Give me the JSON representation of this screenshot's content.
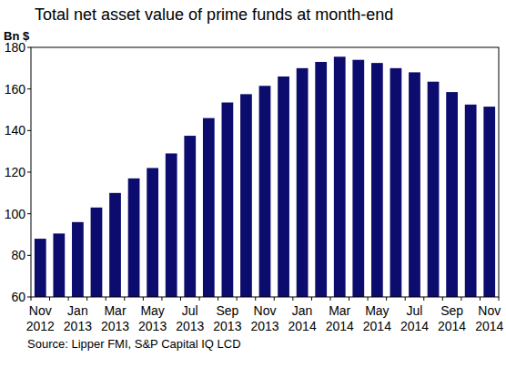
{
  "chart_data": {
    "type": "bar",
    "title": "Total net asset value of prime funds at month-end",
    "y_label": "Bn $",
    "source": "Source: Lipper FMI, S&P Capital IQ LCD",
    "categories": [
      "Nov 2012",
      null,
      "Jan 2013",
      null,
      "Mar 2013",
      null,
      "May 2013",
      null,
      "Jul 2013",
      null,
      "Sep 2013",
      null,
      "Nov 2013",
      null,
      "Jan 2014",
      null,
      "Mar 2014",
      null,
      "May 2014",
      null,
      "Jul 2014",
      null,
      "Sep 2014",
      null,
      "Nov 2014"
    ],
    "values": [
      88,
      90.5,
      96,
      103,
      110,
      117,
      122,
      129,
      137.5,
      146,
      153.5,
      157.5,
      161.5,
      166,
      170,
      173,
      175.5,
      174,
      172.5,
      170,
      168,
      163.5,
      158.5,
      152.5,
      151.5
    ],
    "color": "#0c0c6e",
    "ylim": [
      60,
      180
    ],
    "yticks": [
      60,
      80,
      100,
      120,
      140,
      160,
      180
    ],
    "grid": false
  }
}
